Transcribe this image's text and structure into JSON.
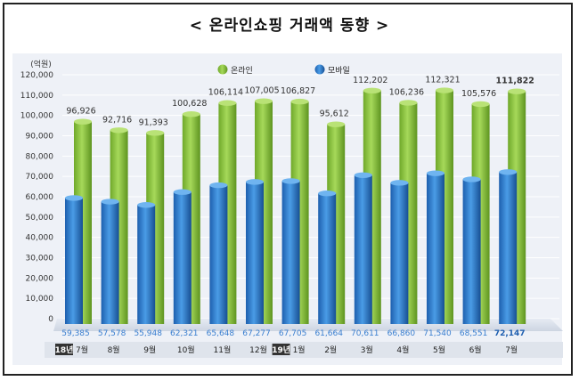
{
  "page": {
    "title": "< 온라인쇼핑 거래액 동향 >"
  },
  "chart_data": {
    "type": "bar",
    "unit_label": "(억원)",
    "categories": [
      "7월",
      "8월",
      "9월",
      "10월",
      "11월",
      "12월",
      "1월",
      "2월",
      "3월",
      "4월",
      "5월",
      "6월",
      "7월"
    ],
    "year_badges": [
      {
        "index": 0,
        "label": "18년"
      },
      {
        "index": 6,
        "label": "19년"
      }
    ],
    "series": [
      {
        "name": "온라인",
        "color": "#8cc43c",
        "values": [
          96926,
          92716,
          91393,
          100628,
          106114,
          107005,
          106827,
          95612,
          112202,
          106236,
          112321,
          105576,
          111822
        ],
        "labels": [
          "96,926",
          "92,716",
          "91,393",
          "100,628",
          "106,114",
          "107,005",
          "106,827",
          "95,612",
          "112,202",
          "106,236",
          "112,321",
          "105,576",
          "111,822"
        ]
      },
      {
        "name": "모바일",
        "color": "#2f7fd0",
        "values": [
          59385,
          57578,
          55948,
          62321,
          65648,
          67277,
          67705,
          61664,
          70611,
          66860,
          71540,
          68551,
          72147
        ],
        "labels": [
          "59,385",
          "57,578",
          "55,948",
          "62,321",
          "65,648",
          "67,277",
          "67,705",
          "61,664",
          "70,611",
          "66,860",
          "71,540",
          "68,551",
          "72,147"
        ]
      }
    ],
    "y_ticks": [
      "0",
      "10,000",
      "20,000",
      "30,000",
      "40,000",
      "50,000",
      "60,000",
      "70,000",
      "80,000",
      "90,000",
      "100,000",
      "110,000",
      "120,000"
    ],
    "ylim": [
      0,
      120000
    ],
    "legend_position": "top"
  }
}
